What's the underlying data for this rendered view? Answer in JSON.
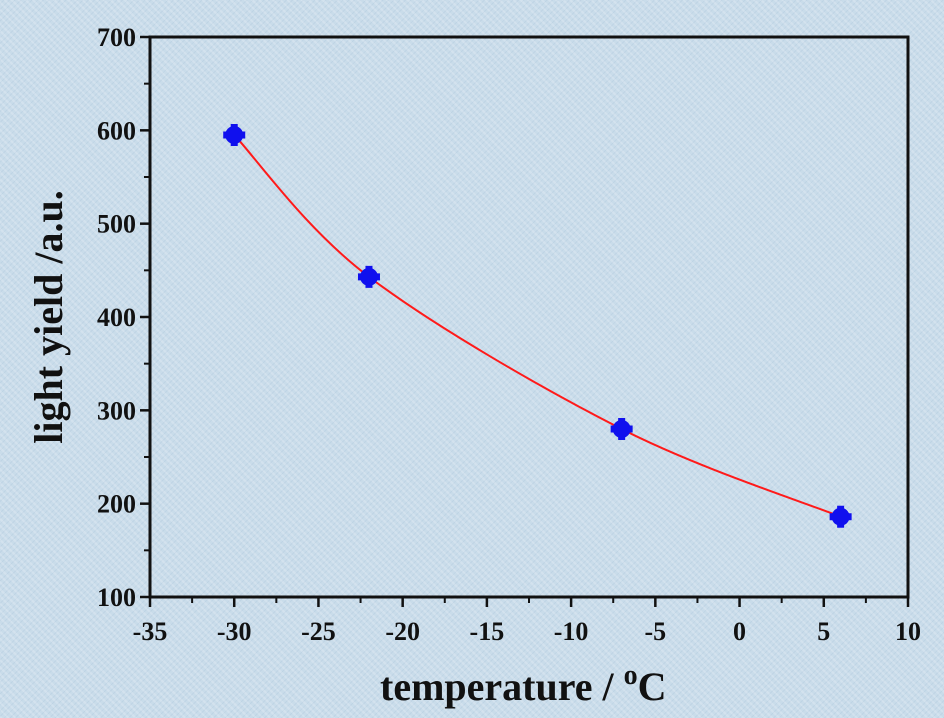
{
  "chart_data": {
    "type": "scatter",
    "title": "",
    "xlabel": "temperature / ",
    "xlabel_degree": "o",
    "xlabel_unit": "C",
    "ylabel": "light yield /a.u.",
    "xlim": [
      -35,
      10
    ],
    "ylim": [
      100,
      700
    ],
    "xticks": [
      "-35",
      "-30",
      "-25",
      "-20",
      "-15",
      "-10",
      "-5",
      "0",
      "5",
      "10"
    ],
    "yticks": [
      "100",
      "200",
      "300",
      "400",
      "500",
      "600",
      "700"
    ],
    "grid": false,
    "legend": "none",
    "series": [
      {
        "points": [
          {
            "x": -30,
            "y": 595
          },
          {
            "x": -22,
            "y": 443
          },
          {
            "x": -7,
            "y": 280
          },
          {
            "x": 6,
            "y": 186
          }
        ],
        "marker_color": "#1010ee",
        "fit_line_color": "#ff1a1a",
        "fit": "smooth curve"
      }
    ],
    "colors": {
      "background": "#c9dcea",
      "axes": "#111111",
      "markers": "#1010ee",
      "fit_line": "#ff1a1a"
    }
  }
}
